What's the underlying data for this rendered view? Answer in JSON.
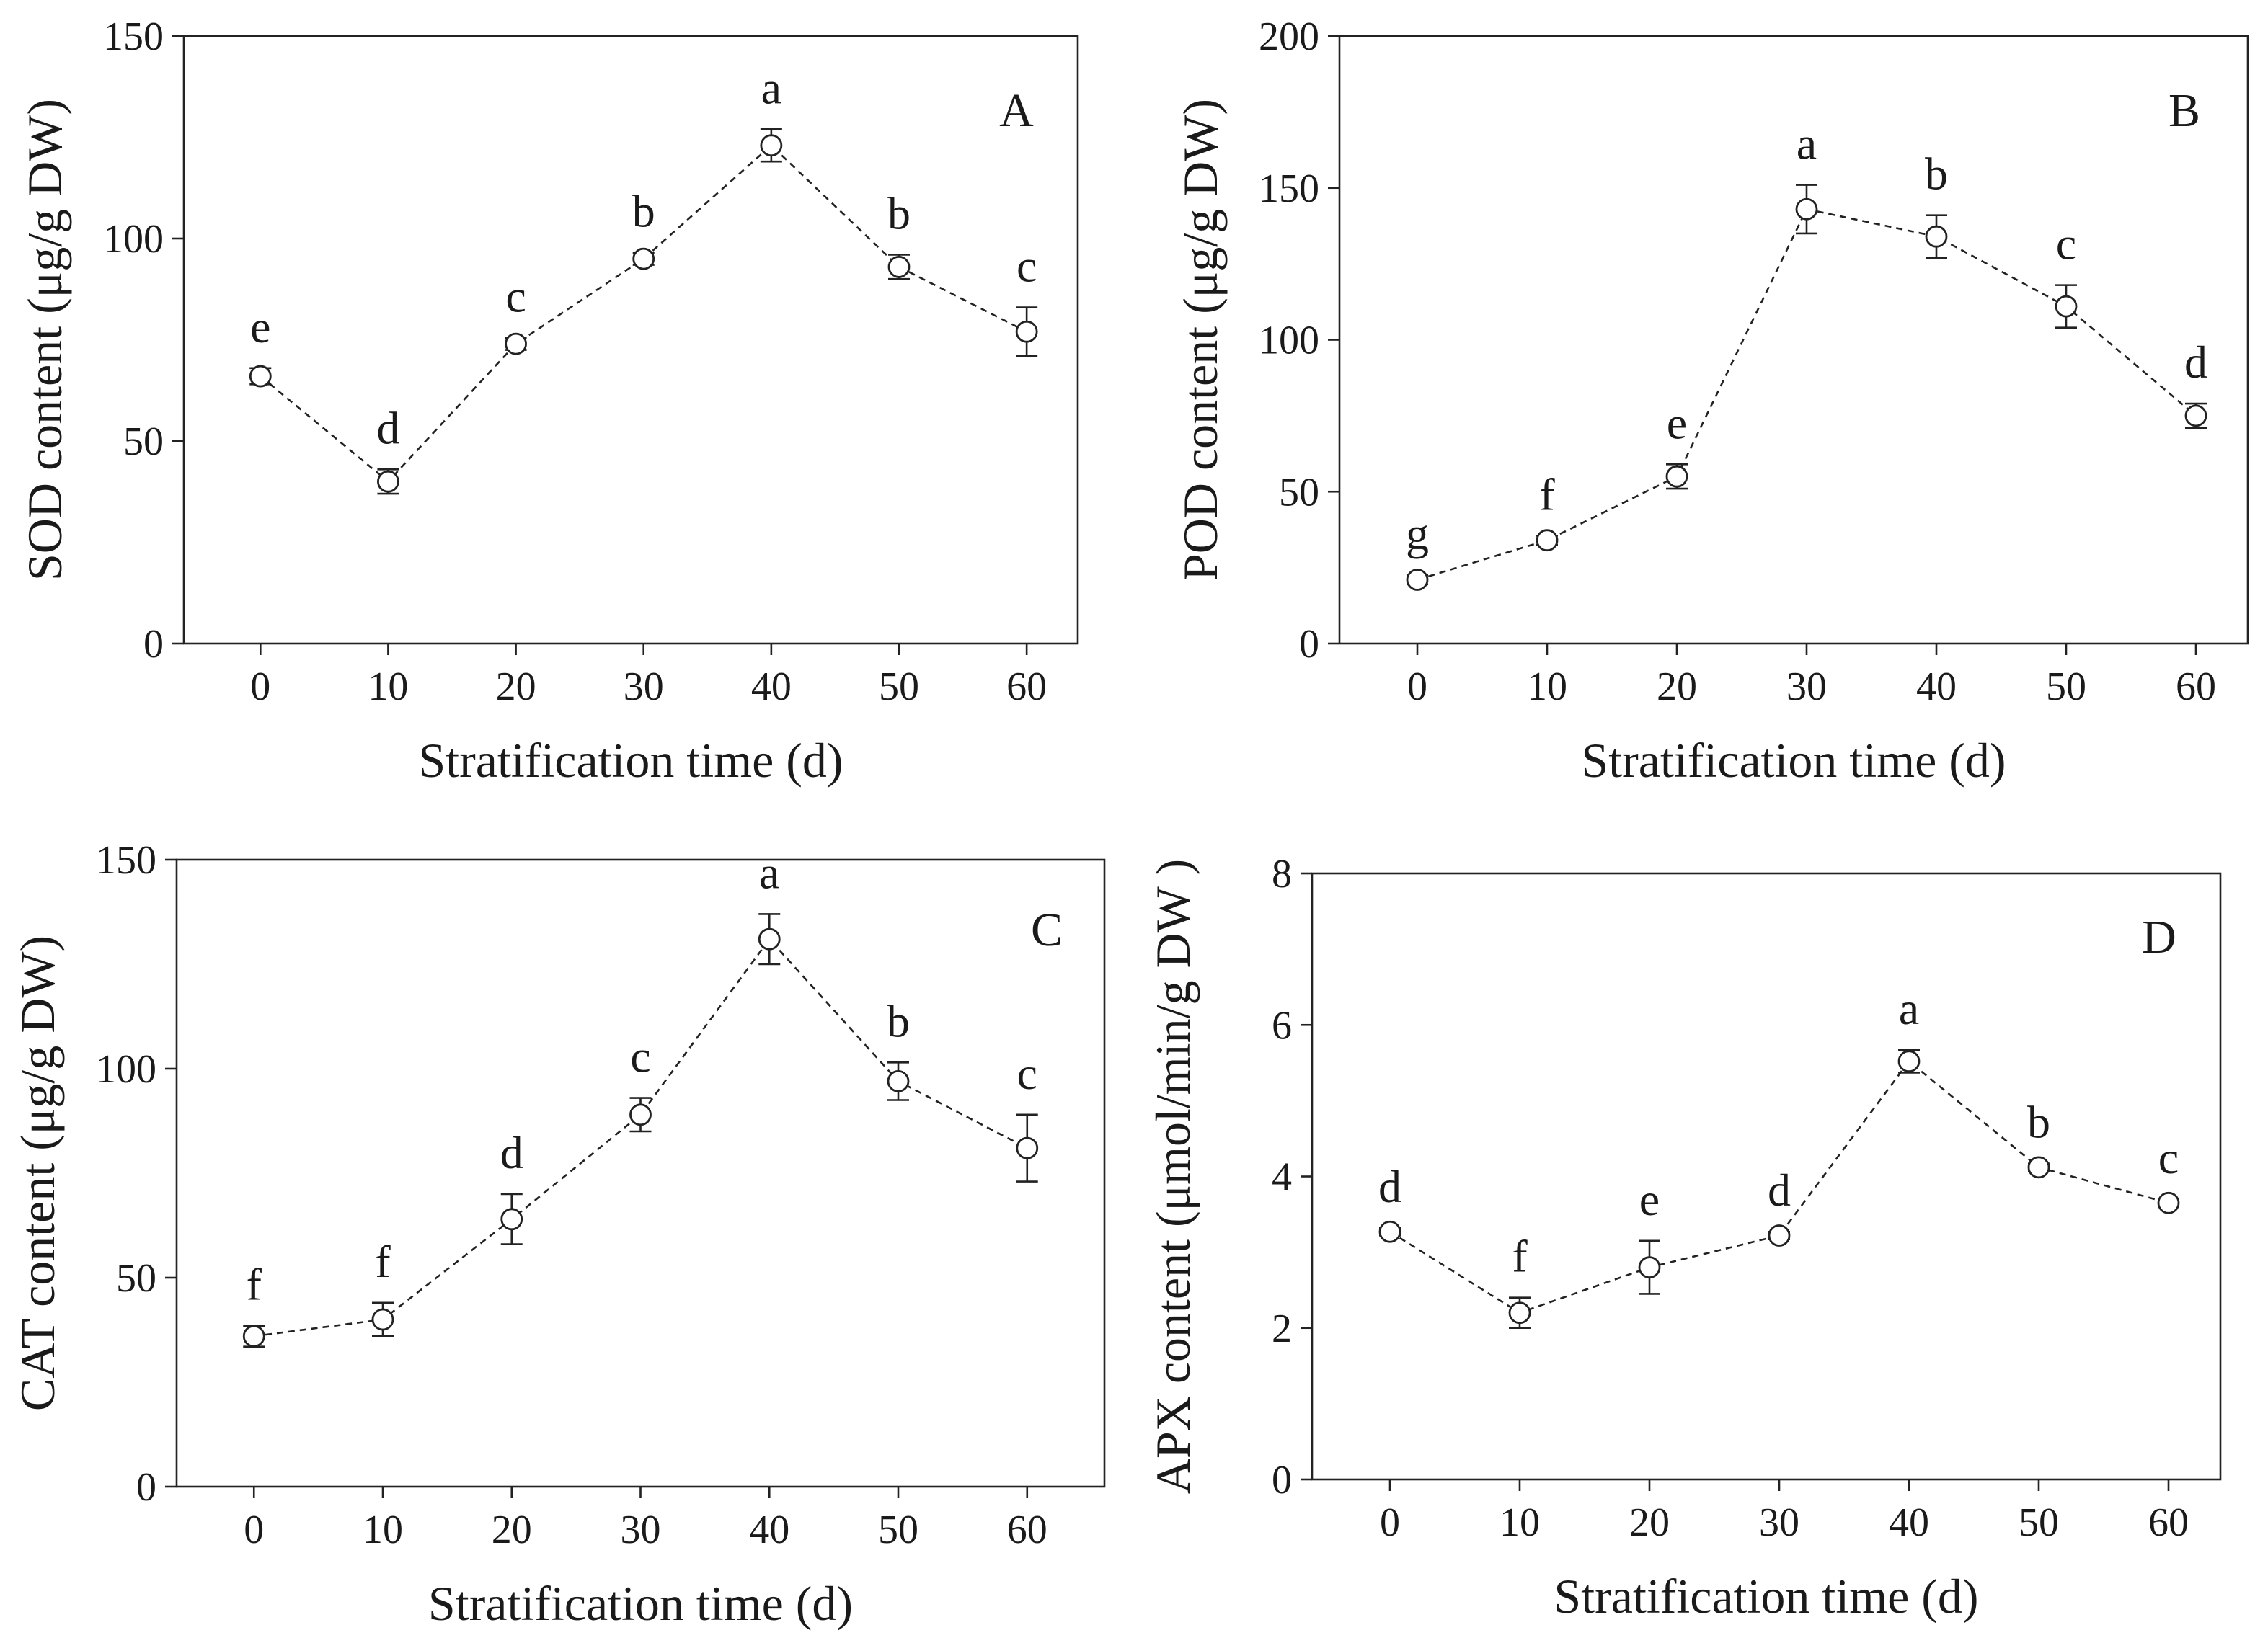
{
  "chart_data": [
    {
      "type": "line",
      "panel": "A",
      "xlabel": "Stratification time (d)",
      "ylabel": "SOD content (μg/g DW)",
      "x": [
        0,
        10,
        20,
        30,
        40,
        50,
        60
      ],
      "xticks": [
        "0",
        "10",
        "20",
        "30",
        "40",
        "50",
        "60"
      ],
      "ylim": [
        0,
        150
      ],
      "yticks": [
        "0",
        "50",
        "100",
        "150"
      ],
      "series": [
        {
          "values": [
            66,
            40,
            74,
            95,
            123,
            93,
            77
          ]
        }
      ],
      "errors": [
        2,
        3,
        1.5,
        1.5,
        4,
        3,
        6
      ],
      "letters": [
        "e",
        "d",
        "c",
        "b",
        "a",
        "b",
        "c"
      ]
    },
    {
      "type": "line",
      "panel": "B",
      "xlabel": "Stratification time (d)",
      "ylabel": "POD content (μg/g DW)",
      "x": [
        0,
        10,
        20,
        30,
        40,
        50,
        60
      ],
      "xticks": [
        "0",
        "10",
        "20",
        "30",
        "40",
        "50",
        "60"
      ],
      "ylim": [
        0,
        200
      ],
      "yticks": [
        "0",
        "50",
        "100",
        "150",
        "200"
      ],
      "series": [
        {
          "values": [
            21,
            34,
            55,
            143,
            134,
            111,
            75
          ]
        }
      ],
      "errors": [
        1.5,
        1.5,
        4,
        8,
        7,
        7,
        4
      ],
      "letters": [
        "g",
        "f",
        "e",
        "a",
        "b",
        "c",
        "d"
      ]
    },
    {
      "type": "line",
      "panel": "C",
      "xlabel": "Stratification time (d)",
      "ylabel": "CAT content (μg/g DW)",
      "x": [
        0,
        10,
        20,
        30,
        40,
        50,
        60
      ],
      "xticks": [
        "0",
        "10",
        "20",
        "30",
        "40",
        "50",
        "60"
      ],
      "ylim": [
        0,
        150
      ],
      "yticks": [
        "0",
        "50",
        "100",
        "150"
      ],
      "series": [
        {
          "values": [
            36,
            40,
            64,
            89,
            131,
            97,
            81
          ]
        }
      ],
      "errors": [
        2.5,
        4,
        6,
        4,
        6,
        4.5,
        8
      ],
      "letters": [
        "f",
        "f",
        "d",
        "c",
        "a",
        "b",
        "c"
      ]
    },
    {
      "type": "line",
      "panel": "D",
      "xlabel": "Stratification time (d)",
      "ylabel": "APX content (μmol/min/g DW )",
      "x": [
        0,
        10,
        20,
        30,
        40,
        50,
        60
      ],
      "xticks": [
        "0",
        "10",
        "20",
        "30",
        "40",
        "50",
        "60"
      ],
      "ylim": [
        0,
        8
      ],
      "yticks": [
        "0",
        "2",
        "4",
        "6",
        "8"
      ],
      "series": [
        {
          "values": [
            3.27,
            2.2,
            2.8,
            3.22,
            5.52,
            4.12,
            3.65
          ]
        }
      ],
      "errors": [
        0.05,
        0.2,
        0.35,
        0.05,
        0.15,
        0.05,
        0.05
      ],
      "letters": [
        "d",
        "f",
        "e",
        "d",
        "a",
        "b",
        "c"
      ]
    }
  ]
}
